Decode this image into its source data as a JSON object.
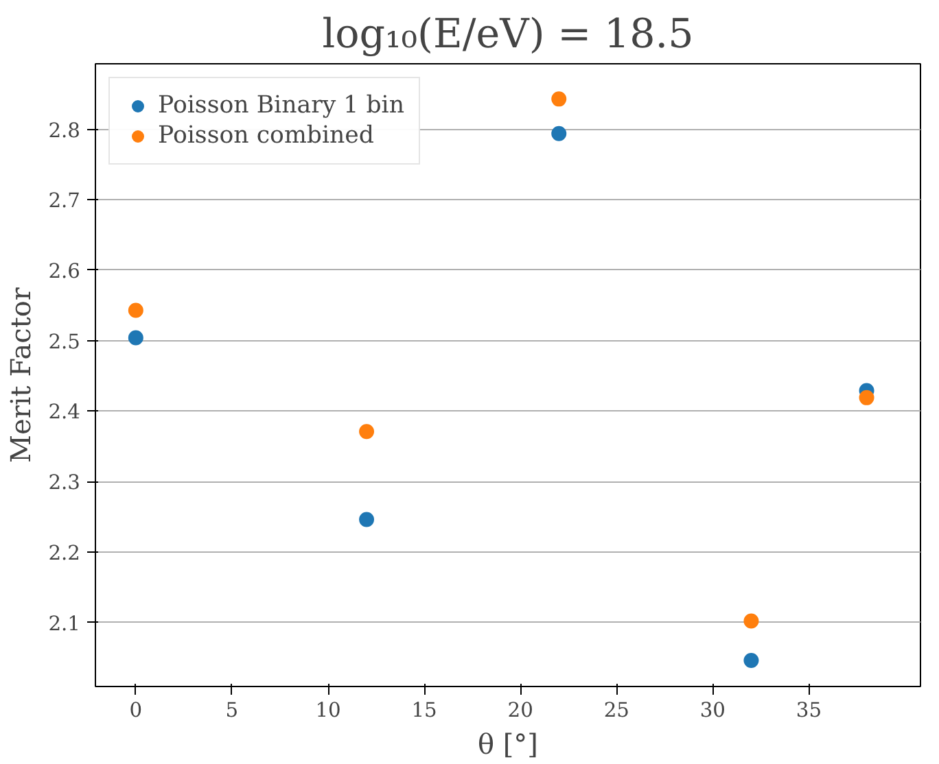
{
  "chart_data": {
    "type": "scatter",
    "title": "log₁₀(E/eV) = 18.5",
    "xlabel": "θ [°]",
    "ylabel": "Merit Factor",
    "x": [
      0,
      12,
      22,
      32,
      38
    ],
    "series": [
      {
        "name": "Poisson Binary 1 bin",
        "color": "#1f77b4",
        "values": [
          2.504,
          2.246,
          2.794,
          2.046,
          2.429
        ]
      },
      {
        "name": "Poisson combined",
        "color": "#ff7f0e",
        "values": [
          2.543,
          2.371,
          2.843,
          2.102,
          2.419
        ]
      }
    ],
    "xlim": [
      -2.1,
      40.8
    ],
    "ylim": [
      2.009,
      2.893
    ],
    "xticks": [
      0,
      5,
      10,
      15,
      20,
      25,
      30,
      35
    ],
    "yticks": [
      {
        "value": 2.1,
        "label": "2.1"
      },
      {
        "value": 2.2,
        "label": "2.2"
      },
      {
        "value": 2.3,
        "label": "2.3"
      },
      {
        "value": 2.4,
        "label": "2.4"
      },
      {
        "value": 2.5,
        "label": "2.5"
      },
      {
        "value": 2.6,
        "label": "2.6"
      },
      {
        "value": 2.7,
        "label": "2.7"
      },
      {
        "value": 2.8,
        "label": "2.8"
      }
    ],
    "grid": "y",
    "legend": "top left",
    "marker": "circle"
  }
}
